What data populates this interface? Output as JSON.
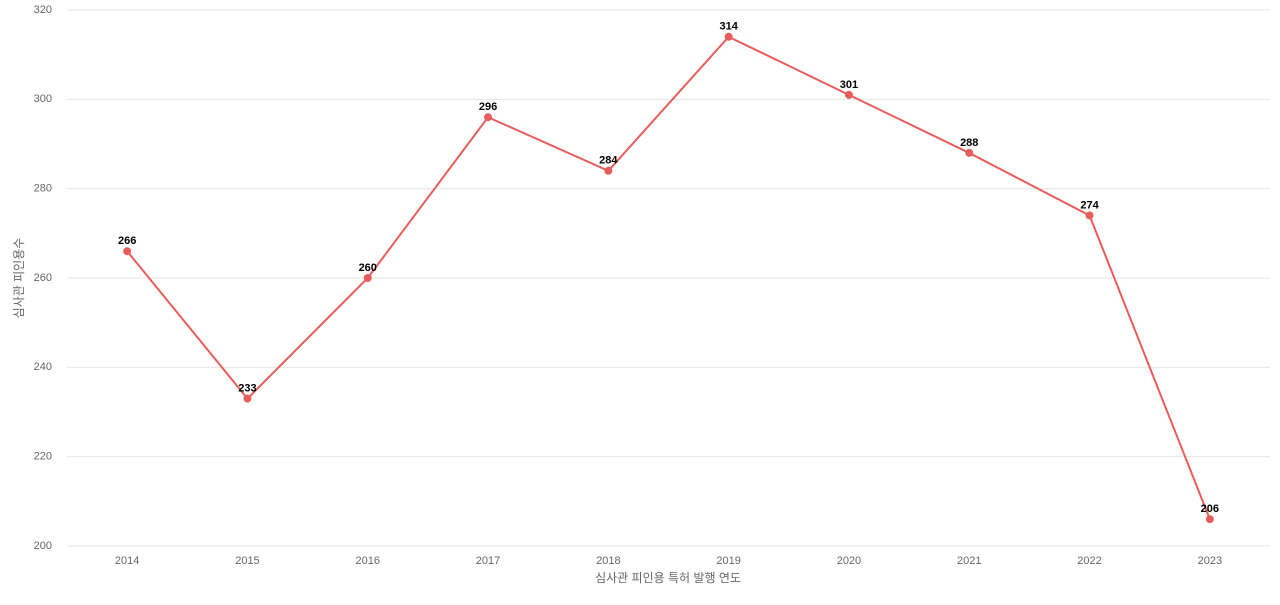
{
  "chart_data": {
    "type": "line",
    "x_label": "심사관 피인용 특허 발행 연도",
    "y_label": "심사관 피인용수",
    "categories": [
      "2014",
      "2015",
      "2016",
      "2017",
      "2018",
      "2019",
      "2020",
      "2021",
      "2022",
      "2023"
    ],
    "series": [
      {
        "name": "심사관 피인용수",
        "color": "#e85c5c",
        "values": [
          266,
          233,
          260,
          296,
          284,
          314,
          301,
          288,
          274,
          206
        ]
      }
    ],
    "ylim": [
      200,
      320
    ],
    "yticks": [
      200,
      220,
      240,
      260,
      280,
      300,
      320
    ],
    "grid": true
  }
}
